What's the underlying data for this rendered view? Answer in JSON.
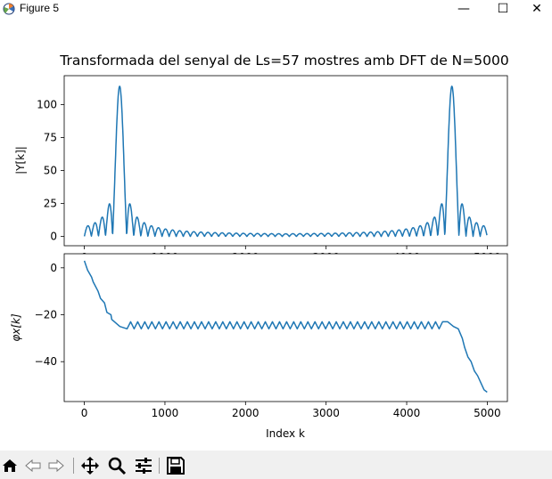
{
  "window": {
    "title": "Figure 5",
    "icon": "matplotlib-icon",
    "controls": [
      "minimize-icon",
      "maximize-icon",
      "close-icon"
    ],
    "control_glyphs": {
      "minimize": "—",
      "maximize": "☐",
      "close": "✕"
    }
  },
  "figure": {
    "title": "Transformada del senyal de Ls=57 mostres amb DFT de N=5000"
  },
  "toolbar": {
    "items": [
      "home-icon",
      "back-icon",
      "forward-icon",
      "pan-icon",
      "zoom-icon",
      "configure-subplots-icon",
      "save-icon"
    ]
  },
  "chart_data": [
    {
      "type": "line",
      "title": "Transformada del senyal de Ls=57 mostres amb DFT de N=5000",
      "xlabel": "",
      "ylabel": "|Y[k]|",
      "xlim": [
        -250,
        5250
      ],
      "ylim": [
        -7,
        122
      ],
      "xticks": [
        0,
        1000,
        2000,
        3000,
        4000,
        5000
      ],
      "yticks": [
        0,
        25,
        50,
        75,
        100
      ],
      "xtick_labels": [
        "0",
        "1000",
        "2000",
        "3000",
        "4000",
        "5000"
      ],
      "ytick_labels": [
        "0",
        "25",
        "50",
        "75",
        "100"
      ],
      "color": "#1f77b4",
      "grid": false,
      "series": [
        {
          "x_range": [
            0,
            4999
          ],
          "peak_positions": [
            438,
            4561
          ],
          "peak_value": 114,
          "mainlobe_halfwidth": 88,
          "sidelobe_peaks_near": [
            27,
            22,
            12,
            9
          ],
          "floor_sidelobe_level": 6
        }
      ]
    },
    {
      "type": "line",
      "xlabel": "Index k",
      "ylabel": "φx[k]",
      "xlim": [
        -250,
        5250
      ],
      "ylim": [
        -57,
        6
      ],
      "xticks": [
        0,
        1000,
        2000,
        3000,
        4000,
        5000
      ],
      "yticks": [
        0,
        -20,
        -40
      ],
      "xtick_labels": [
        "0",
        "1000",
        "2000",
        "3000",
        "4000",
        "5000"
      ],
      "ytick_labels": [
        "0",
        "−20",
        "−40"
      ],
      "color": "#1f77b4",
      "grid": false,
      "series": [
        {
          "x_range": [
            0,
            4999
          ],
          "start_value": 3,
          "plateau_start_x": 530,
          "plateau_end_x": 4460,
          "plateau_low": -26,
          "plateau_high": -23,
          "end_value": -53
        }
      ]
    }
  ]
}
